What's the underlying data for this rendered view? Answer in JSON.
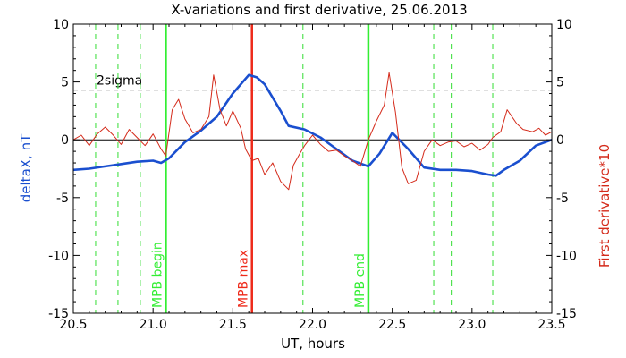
{
  "chart_data": {
    "type": "line",
    "title": "X-variations and first derivative, 25.06.2013",
    "xlabel": "UT, hours",
    "ylabel_left": "deltaX, nT",
    "ylabel_right": "First derivative*10",
    "xlim": [
      20.5,
      23.5
    ],
    "ylim": [
      -15,
      10
    ],
    "xticks": [
      "20.5",
      "21.0",
      "21.5",
      "22.0",
      "22.5",
      "23.0",
      "23.5"
    ],
    "yticks_left": [
      "10",
      "5",
      "0",
      "-5",
      "-10",
      "-15"
    ],
    "yticks_right": [
      "10",
      "5",
      "0",
      "-5",
      "-10",
      "-15"
    ],
    "sigma_label": "2sigma",
    "sigma_level": 4.3,
    "series": [
      {
        "name": "deltaX, nT",
        "color": "#1a4fcf",
        "x": [
          20.5,
          20.6,
          20.7,
          20.8,
          20.9,
          21.0,
          21.05,
          21.1,
          21.2,
          21.3,
          21.4,
          21.5,
          21.6,
          21.65,
          21.7,
          21.8,
          21.85,
          21.95,
          22.05,
          22.15,
          22.25,
          22.35,
          22.42,
          22.5,
          22.6,
          22.7,
          22.8,
          22.9,
          23.0,
          23.1,
          23.15,
          23.2,
          23.3,
          23.4,
          23.5
        ],
        "y": [
          -2.6,
          -2.5,
          -2.3,
          -2.1,
          -1.9,
          -1.8,
          -2.0,
          -1.6,
          -0.2,
          0.8,
          2.0,
          4.0,
          5.6,
          5.4,
          4.8,
          2.5,
          1.2,
          0.9,
          0.2,
          -0.8,
          -1.8,
          -2.3,
          -1.2,
          0.6,
          -0.8,
          -2.4,
          -2.6,
          -2.6,
          -2.7,
          -3.0,
          -3.1,
          -2.6,
          -1.8,
          -0.5,
          0.0
        ]
      },
      {
        "name": "First derivative*10",
        "color": "#d42a1a",
        "x": [
          20.5,
          20.55,
          20.6,
          20.65,
          20.7,
          20.75,
          20.8,
          20.85,
          20.9,
          20.95,
          21.0,
          21.05,
          21.08,
          21.12,
          21.16,
          21.2,
          21.25,
          21.3,
          21.35,
          21.38,
          21.42,
          21.46,
          21.5,
          21.55,
          21.58,
          21.62,
          21.66,
          21.7,
          21.75,
          21.8,
          21.85,
          21.88,
          21.92,
          21.95,
          22.0,
          22.05,
          22.1,
          22.15,
          22.2,
          22.25,
          22.3,
          22.35,
          22.4,
          22.45,
          22.48,
          22.52,
          22.56,
          22.6,
          22.65,
          22.7,
          22.75,
          22.8,
          22.85,
          22.9,
          22.95,
          23.0,
          23.05,
          23.1,
          23.13,
          23.18,
          23.22,
          23.28,
          23.32,
          23.38,
          23.42,
          23.46,
          23.5
        ],
        "y": [
          0.0,
          0.4,
          -0.5,
          0.5,
          1.1,
          0.4,
          -0.4,
          0.9,
          0.2,
          -0.5,
          0.5,
          -0.8,
          -1.4,
          2.6,
          3.5,
          1.8,
          0.6,
          0.9,
          2.0,
          5.6,
          2.6,
          1.2,
          2.5,
          1.0,
          -0.8,
          -1.8,
          -1.6,
          -3.0,
          -2.0,
          -3.6,
          -4.3,
          -2.2,
          -1.2,
          -0.5,
          0.4,
          -0.4,
          -1.0,
          -0.9,
          -1.4,
          -1.8,
          -2.3,
          0.0,
          1.6,
          3.0,
          5.8,
          2.4,
          -2.4,
          -3.8,
          -3.5,
          -1.0,
          0.0,
          -0.5,
          -0.2,
          -0.1,
          -0.6,
          -0.3,
          -0.9,
          -0.4,
          0.2,
          0.7,
          2.6,
          1.4,
          0.9,
          0.7,
          1.0,
          0.4,
          0.7
        ]
      }
    ],
    "event_lines": [
      {
        "label": "MPB begin",
        "x": 21.08,
        "color": "#33ee33"
      },
      {
        "label": "MPB max",
        "x": 21.62,
        "color": "#ee2a1a"
      },
      {
        "label": "MPB end",
        "x": 22.35,
        "color": "#33ee33"
      }
    ],
    "dashed_lines_x": [
      20.64,
      20.78,
      20.92,
      21.94,
      22.76,
      22.87,
      23.13
    ],
    "dashed_color": "#33dd33",
    "grid": false,
    "legend": "none"
  }
}
